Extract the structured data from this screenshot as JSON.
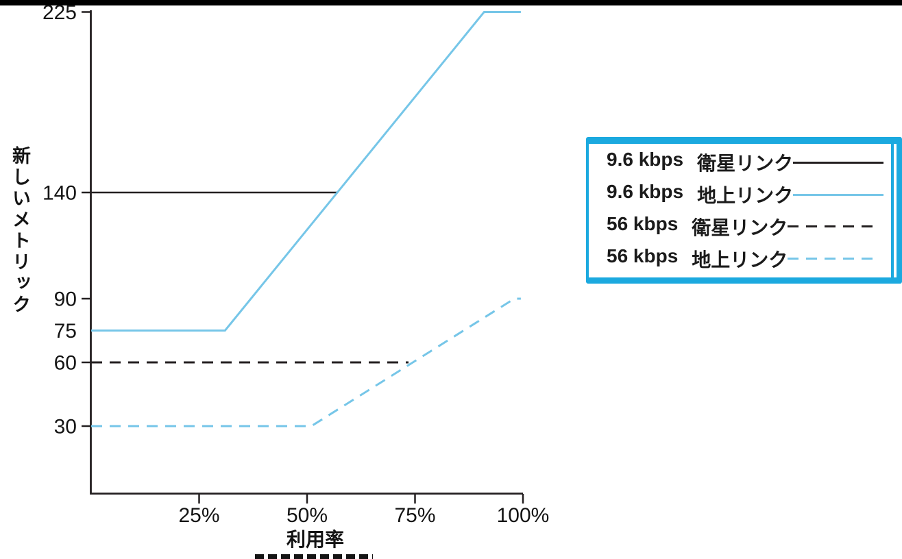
{
  "figure": {
    "background": "#ffffff",
    "top_bar_color": "#000000"
  },
  "colors": {
    "axis_black": "#231f20",
    "text_black": "#141414",
    "line_black": "#231f20",
    "line_blue": "#76c6e8",
    "legend_border_blue": "#1ba9df"
  },
  "chart_data": {
    "type": "line",
    "title": "",
    "xlabel": "利用率",
    "ylabel": "新しいメトリック",
    "xlim": [
      0,
      100
    ],
    "ylim": [
      0,
      230
    ],
    "grid": false,
    "legend_position": "right",
    "x_ticks": [
      {
        "value": 25,
        "label": "25%"
      },
      {
        "value": 50,
        "label": "50%"
      },
      {
        "value": 75,
        "label": "75%"
      },
      {
        "value": 100,
        "label": "100%"
      }
    ],
    "y_ticks": [
      {
        "value": 225,
        "label": "225",
        "tick_mark": true
      },
      {
        "value": 140,
        "label": "140",
        "tick_mark": true
      },
      {
        "value": 90,
        "label": "90",
        "tick_mark": true
      },
      {
        "value": 75,
        "label": "75",
        "tick_mark": false
      },
      {
        "value": 60,
        "label": "60",
        "tick_mark": true
      },
      {
        "value": 30,
        "label": "30",
        "tick_mark": true
      }
    ],
    "series": [
      {
        "name": "9.6 kbps 衛星リンク",
        "rate": "9.6 kbps",
        "link": "衛星リンク",
        "style": "solid",
        "color": "#231f20",
        "points": [
          [
            0,
            140
          ],
          [
            57,
            140
          ]
        ]
      },
      {
        "name": "9.6 kbps 地上リンク",
        "rate": "9.6 kbps",
        "link": "地上リンク",
        "style": "solid",
        "color": "#76c6e8",
        "points": [
          [
            0,
            75
          ],
          [
            31,
            75
          ],
          [
            91,
            225
          ],
          [
            99.5,
            225
          ]
        ]
      },
      {
        "name": "56 kbps 衛星リンク",
        "rate": "56 kbps",
        "link": "衛星リンク",
        "style": "dashed",
        "color": "#231f20",
        "points": [
          [
            0,
            60
          ],
          [
            73.5,
            60
          ]
        ]
      },
      {
        "name": "56 kbps 地上リンク",
        "rate": "56 kbps",
        "link": "地上リンク",
        "style": "dashed",
        "color": "#76c6e8",
        "points": [
          [
            0,
            30
          ],
          [
            51,
            30
          ],
          [
            98,
            90
          ],
          [
            99.5,
            90
          ]
        ]
      }
    ]
  }
}
